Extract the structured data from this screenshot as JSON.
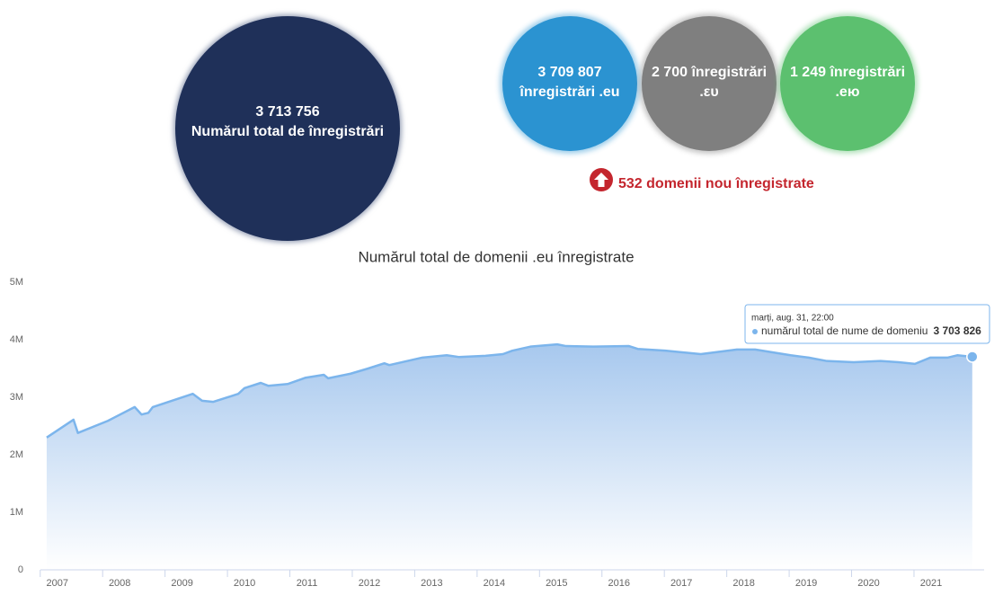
{
  "stats": {
    "total": {
      "lines": [
        "3 713 756",
        "Numărul total de înregistrări"
      ]
    },
    "circles": [
      {
        "lines": [
          "3 709 807",
          "înregistrări .eu"
        ],
        "color": "#2b93d1"
      },
      {
        "lines": [
          "2 700 înregistrări",
          ".ευ"
        ],
        "color": "#7f7f7f"
      },
      {
        "lines": [
          "1 249 înregistrări",
          ".ею"
        ],
        "color": "#5cc06f"
      }
    ],
    "new_domains": "532 domenii nou înregistrate"
  },
  "chart_data": {
    "type": "area",
    "title": "Numărul total de domenii .eu înregistrate",
    "x": [
      2006.83,
      2007.26,
      2007.33,
      2007.81,
      2008.24,
      2008.35,
      2008.46,
      2008.53,
      2009.17,
      2009.32,
      2009.5,
      2009.9,
      2010.0,
      2010.26,
      2010.38,
      2010.69,
      2010.98,
      2011.27,
      2011.34,
      2011.7,
      2011.98,
      2012.24,
      2012.32,
      2012.85,
      2013.24,
      2013.43,
      2013.86,
      2014.14,
      2014.29,
      2014.58,
      2015.01,
      2015.15,
      2015.59,
      2016.16,
      2016.3,
      2016.74,
      2017.31,
      2017.89,
      2018.18,
      2018.75,
      2019.04,
      2019.33,
      2019.76,
      2020.19,
      2020.48,
      2020.74,
      2020.99,
      2021.27,
      2021.42,
      2021.66
    ],
    "series": [
      {
        "name": "numărul total de nume de domeniu",
        "color": "#7cb5ec",
        "values": [
          2300000,
          2610000,
          2380000,
          2590000,
          2830000,
          2700000,
          2730000,
          2830000,
          3060000,
          2940000,
          2920000,
          3060000,
          3160000,
          3250000,
          3200000,
          3230000,
          3340000,
          3390000,
          3330000,
          3410000,
          3500000,
          3590000,
          3560000,
          3690000,
          3730000,
          3700000,
          3720000,
          3750000,
          3810000,
          3880000,
          3920000,
          3890000,
          3880000,
          3890000,
          3840000,
          3810000,
          3750000,
          3830000,
          3830000,
          3730000,
          3690000,
          3630000,
          3610000,
          3630000,
          3610000,
          3580000,
          3690000,
          3690000,
          3730000,
          3703826
        ]
      }
    ],
    "xlim": [
      2006.73,
      2021.85
    ],
    "xticks": [
      2007,
      2008,
      2009,
      2010,
      2011,
      2012,
      2013,
      2014,
      2015,
      2016,
      2017,
      2018,
      2019,
      2020,
      2021
    ],
    "ylim": [
      0,
      5000000
    ],
    "yticks": [
      0,
      {
        "value": 1000000,
        "label": "1M"
      },
      {
        "value": 2000000,
        "label": "2M"
      },
      {
        "value": 3000000,
        "label": "3M"
      },
      {
        "value": 4000000,
        "label": "4M"
      },
      {
        "value": 5000000,
        "label": "5M"
      }
    ],
    "grid": false,
    "tooltip": {
      "date": "marți, aug. 31, 22:00",
      "value": 3703826,
      "value_label": "3 703 826"
    }
  }
}
